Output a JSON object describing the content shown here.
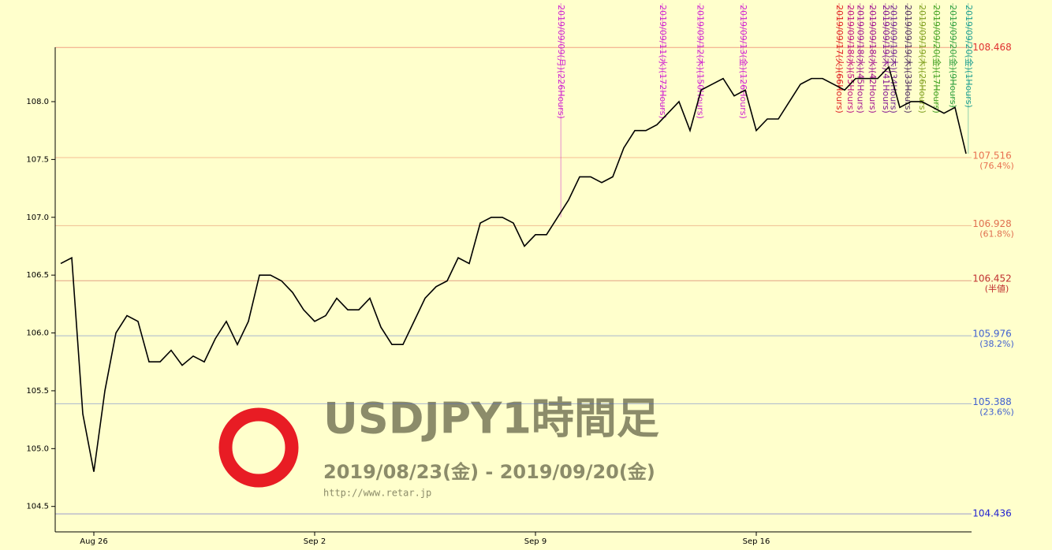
{
  "chart_data": {
    "type": "line",
    "title": "USDJPY1時間足",
    "subtitle": "2019/08/23(金) - 2019/09/20(金)",
    "source": "http://www.retar.jp",
    "categories": [
      null,
      null,
      null,
      "Aug 26",
      null,
      null,
      null,
      null,
      null,
      null,
      null,
      null,
      null,
      null,
      null,
      null,
      null,
      null,
      null,
      null,
      null,
      null,
      null,
      "Sep 2",
      null,
      null,
      null,
      null,
      null,
      null,
      null,
      null,
      null,
      null,
      null,
      null,
      null,
      null,
      null,
      null,
      null,
      null,
      null,
      "Sep 9",
      null,
      null,
      null,
      null,
      null,
      null,
      null,
      null,
      null,
      null,
      null,
      null,
      null,
      null,
      null,
      null,
      null,
      null,
      null,
      "Sep 16",
      null,
      null,
      null,
      null,
      null,
      null,
      null,
      null,
      null,
      null,
      null,
      null,
      null,
      null,
      null,
      null,
      null,
      null,
      null
    ],
    "series": [
      {
        "name": "USDJPY",
        "color": "#000000",
        "values": [
          106.6,
          106.65,
          105.3,
          104.8,
          105.5,
          106.0,
          106.15,
          106.1,
          105.75,
          105.75,
          105.85,
          105.72,
          105.8,
          105.75,
          105.95,
          106.1,
          105.9,
          106.1,
          106.5,
          106.5,
          106.45,
          106.35,
          106.2,
          106.1,
          106.15,
          106.3,
          106.2,
          106.2,
          106.3,
          106.05,
          105.9,
          105.9,
          106.1,
          106.3,
          106.4,
          106.45,
          106.65,
          106.6,
          106.95,
          107.0,
          107.0,
          106.95,
          106.75,
          106.85,
          106.85,
          107.0,
          107.15,
          107.35,
          107.35,
          107.3,
          107.35,
          107.6,
          107.75,
          107.75,
          107.8,
          107.9,
          108.0,
          107.75,
          108.1,
          108.15,
          108.2,
          108.05,
          108.1,
          107.75,
          107.85,
          107.85,
          108.0,
          108.15,
          108.2,
          108.2,
          108.15,
          108.1,
          108.2,
          108.2,
          108.2,
          108.3,
          107.95,
          108.0,
          108.0,
          107.95,
          107.9,
          107.95,
          107.55
        ]
      }
    ],
    "ylim": [
      104.28,
      108.47
    ],
    "yticks": [
      104.5,
      {
        "value": 105,
        "label": "105.0"
      },
      105.5,
      {
        "value": 106,
        "label": "106.0"
      },
      106.5,
      {
        "value": 107,
        "label": "107.0"
      },
      107.5,
      {
        "value": 108,
        "label": "108.0"
      }
    ],
    "levels": [
      {
        "value": 108.468,
        "color": "#e03030"
      },
      {
        "value": 107.516,
        "note": "(76.4%)",
        "color": "#e87050"
      },
      {
        "value": 106.928,
        "note": "(61.8%)",
        "color": "#e07050"
      },
      {
        "value": 106.452,
        "note": "(半値)",
        "color": "#c03030"
      },
      {
        "value": 105.976,
        "note": "(38.2%)",
        "color": "#4060d0"
      },
      {
        "value": 105.388,
        "note": "(23.6%)",
        "color": "#4060d0"
      },
      {
        "value": 104.436,
        "color": "#2020d0"
      }
    ],
    "annotations": [
      {
        "text": "2019/09/09(月)(226Hours)",
        "x": 45.3,
        "color": "#d020d0"
      },
      {
        "text": "2019/09/11(水)(172Hours)",
        "x": 54.5,
        "color": "#d020d0"
      },
      {
        "text": "2019/09/12(木)(150Hours)",
        "x": 57.9,
        "color": "#d020d0"
      },
      {
        "text": "2019/09/13(金)(126Hours)",
        "x": 61.8,
        "color": "#d020d0"
      },
      {
        "text": "2019/09/17(火)(66Hours)",
        "x": 70.5,
        "color": "#e02020"
      },
      {
        "text": "2019/09/18(水)(55Hours)",
        "x": 71.5,
        "color": "#c01080"
      },
      {
        "text": "2019/09/18(水)(45Hours)",
        "x": 72.4,
        "color": "#a01090"
      },
      {
        "text": "2019/09/18(水)(42Hours)",
        "x": 73.5,
        "color": "#a01090"
      },
      {
        "text": "2019/09/19(木)(41Hours)",
        "x": 74.7,
        "color": "#801090"
      },
      {
        "text": "2019/09/19(木)(34Hours)",
        "x": 75.4,
        "color": "#702090"
      },
      {
        "text": "2019/09/19(木)(33Hours)",
        "x": 76.7,
        "color": "#503060"
      },
      {
        "text": "2019/09/19(木)(26Hours)",
        "x": 78.0,
        "color": "#80a020"
      },
      {
        "text": "2019/09/20(金)(17Hours)",
        "x": 79.3,
        "color": "#40a020"
      },
      {
        "text": "2019/09/20(金)(9Hours)",
        "x": 80.8,
        "color": "#30a040"
      },
      {
        "text": "2019/09/20(金)(1Hours)",
        "x": 82.2,
        "color": "#20a090"
      }
    ]
  }
}
